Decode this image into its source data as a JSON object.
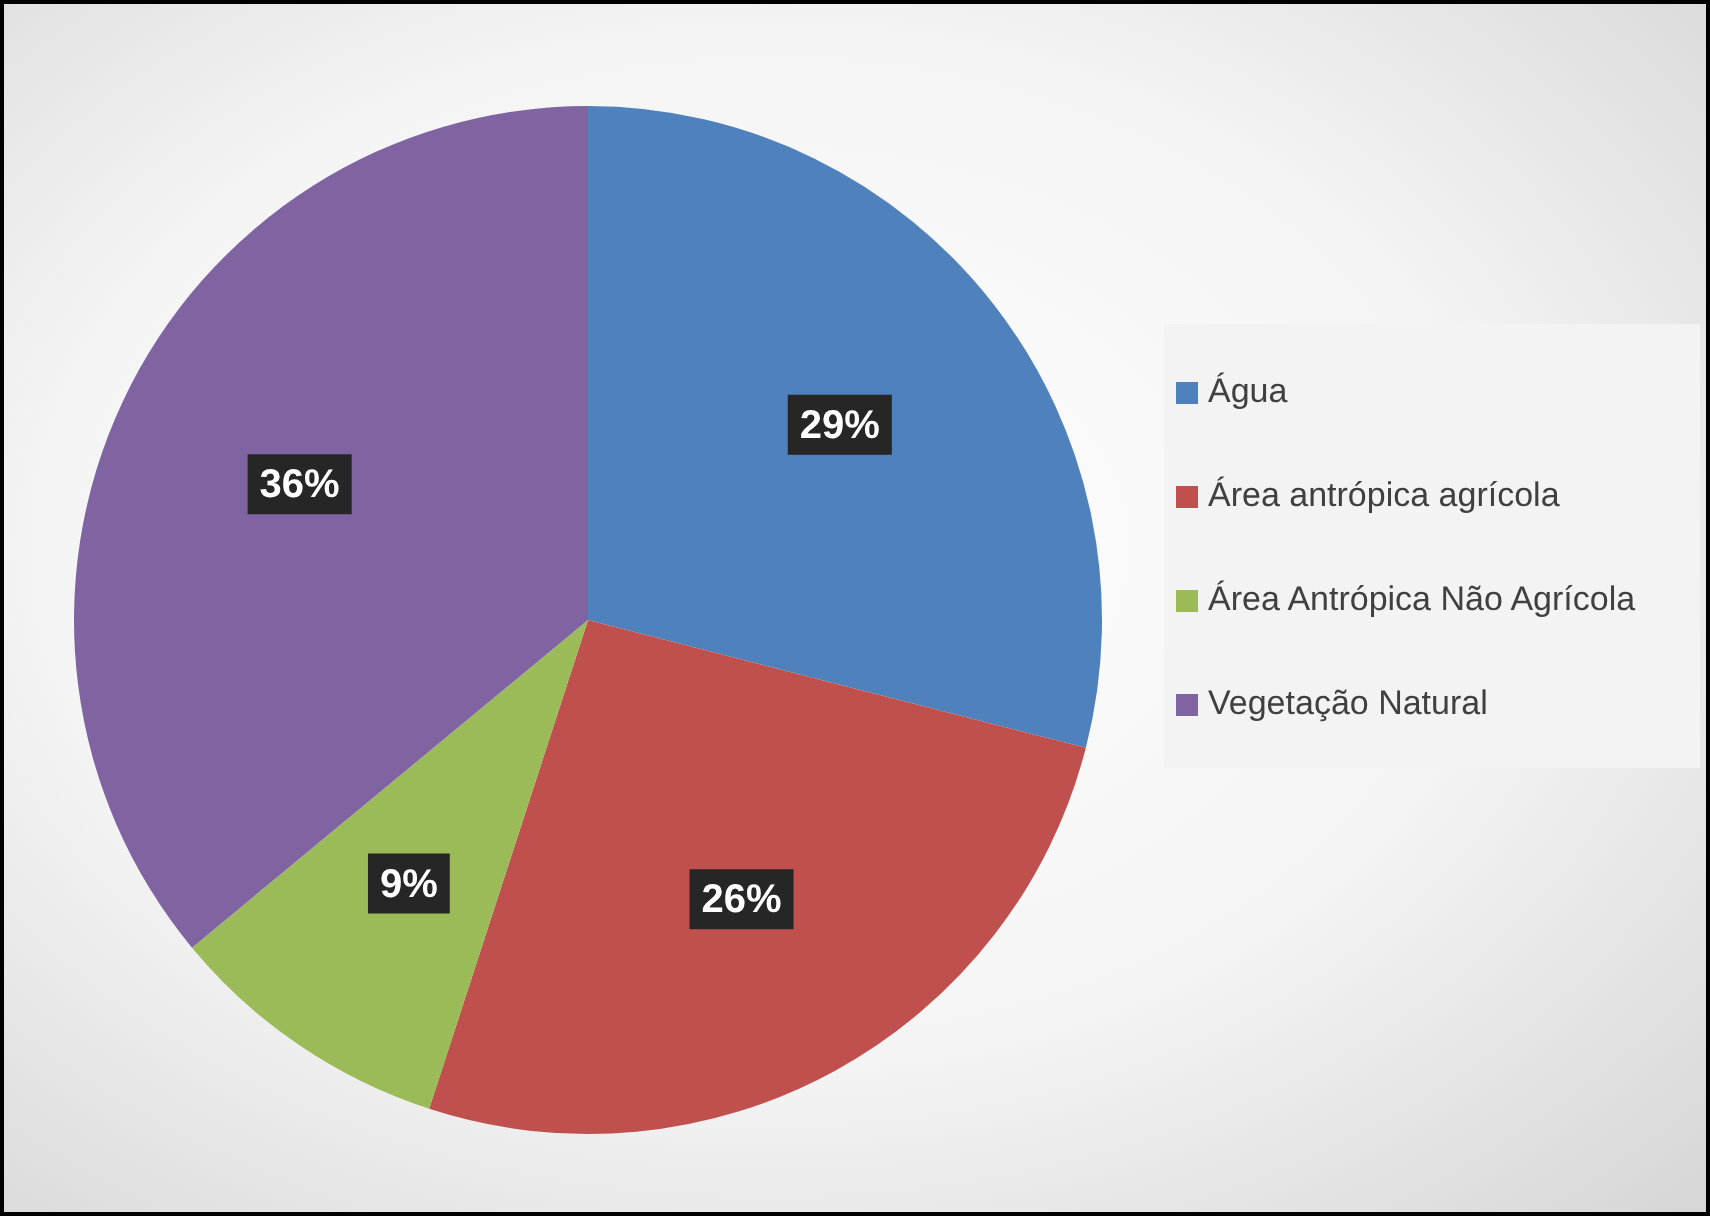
{
  "chart_data": {
    "type": "pie",
    "categories": [
      "Água",
      "Área antrópica agrícola",
      "Área Antrópica Não Agrícola",
      "Vegetação Natural"
    ],
    "values": [
      29,
      26,
      9,
      36
    ],
    "colors": [
      "#4f81bd",
      "#c0504d",
      "#9bbb59",
      "#8064a2"
    ],
    "value_labels": [
      "29%",
      "26%",
      "9%",
      "36%"
    ],
    "legend": "right"
  }
}
